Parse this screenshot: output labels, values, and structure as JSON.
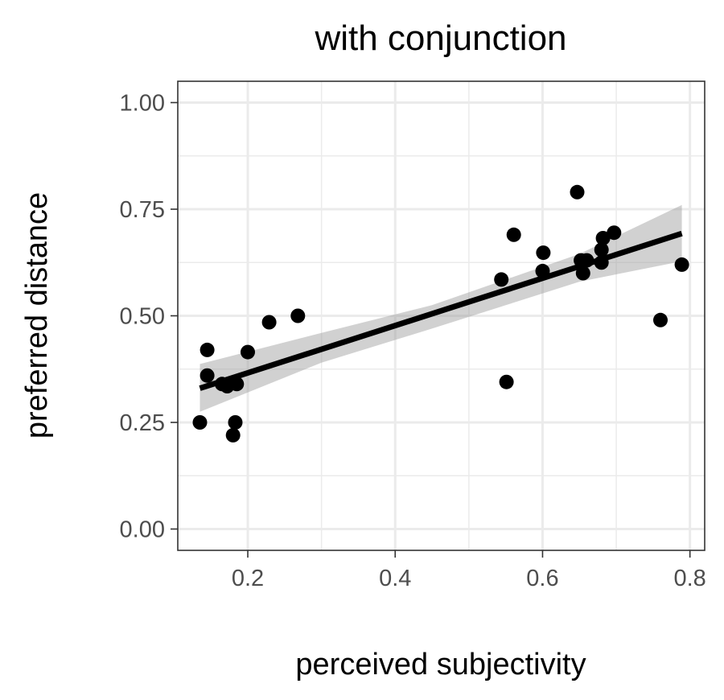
{
  "chart_data": {
    "type": "scatter",
    "title": "with conjunction",
    "xlabel": "perceived subjectivity",
    "ylabel": "preferred distance",
    "xlim": [
      0.105,
      0.82
    ],
    "ylim": [
      -0.05,
      1.05
    ],
    "x_ticks": [
      0.2,
      0.4,
      0.6,
      0.8
    ],
    "x_tick_labels": [
      "0.2",
      "0.4",
      "0.6",
      "0.8"
    ],
    "y_ticks": [
      0.0,
      0.25,
      0.5,
      0.75,
      1.0
    ],
    "y_tick_labels": [
      "0.00",
      "0.25",
      "0.50",
      "0.75",
      "1.00"
    ],
    "x_minor_ticks": [
      0.3,
      0.5,
      0.7
    ],
    "y_minor_ticks": [
      0.125,
      0.375,
      0.625,
      0.875
    ],
    "grid": true,
    "colors": {
      "points": "#000000",
      "fit_line": "#000000",
      "confidence_band": "#999999",
      "grid": "#ebebeb",
      "axis_text": "#4d4d4d",
      "panel_border": "#333333"
    },
    "points": [
      {
        "x": 0.135,
        "y": 0.25
      },
      {
        "x": 0.145,
        "y": 0.42
      },
      {
        "x": 0.145,
        "y": 0.36
      },
      {
        "x": 0.165,
        "y": 0.34
      },
      {
        "x": 0.172,
        "y": 0.335
      },
      {
        "x": 0.18,
        "y": 0.22
      },
      {
        "x": 0.183,
        "y": 0.25
      },
      {
        "x": 0.185,
        "y": 0.34
      },
      {
        "x": 0.2,
        "y": 0.415
      },
      {
        "x": 0.229,
        "y": 0.485
      },
      {
        "x": 0.268,
        "y": 0.5
      },
      {
        "x": 0.544,
        "y": 0.585
      },
      {
        "x": 0.551,
        "y": 0.345
      },
      {
        "x": 0.561,
        "y": 0.69
      },
      {
        "x": 0.6,
        "y": 0.605
      },
      {
        "x": 0.601,
        "y": 0.648
      },
      {
        "x": 0.647,
        "y": 0.79
      },
      {
        "x": 0.652,
        "y": 0.63
      },
      {
        "x": 0.655,
        "y": 0.6
      },
      {
        "x": 0.66,
        "y": 0.63
      },
      {
        "x": 0.68,
        "y": 0.625
      },
      {
        "x": 0.68,
        "y": 0.655
      },
      {
        "x": 0.682,
        "y": 0.682
      },
      {
        "x": 0.697,
        "y": 0.695
      },
      {
        "x": 0.76,
        "y": 0.49
      },
      {
        "x": 0.789,
        "y": 0.62
      }
    ],
    "fit_line": {
      "x": [
        0.135,
        0.789
      ],
      "y": [
        0.33,
        0.693
      ]
    },
    "confidence_band": {
      "x": [
        0.135,
        0.3,
        0.45,
        0.55,
        0.65,
        0.789
      ],
      "lower": [
        0.275,
        0.39,
        0.47,
        0.525,
        0.58,
        0.628
      ],
      "upper": [
        0.387,
        0.46,
        0.525,
        0.585,
        0.645,
        0.76
      ]
    }
  }
}
